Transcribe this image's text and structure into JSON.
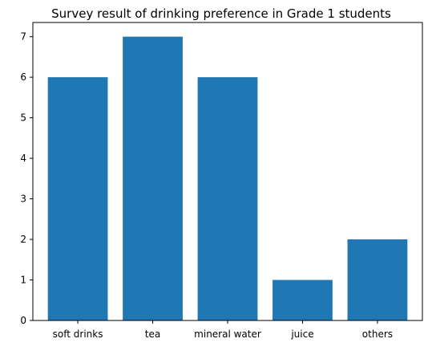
{
  "chart_data": {
    "type": "bar",
    "title": "Survey result of drinking preference in Grade 1 students",
    "categories": [
      "soft drinks",
      "tea",
      "mineral water",
      "juice",
      "others"
    ],
    "values": [
      6,
      7,
      6,
      1,
      2
    ],
    "xlabel": "",
    "ylabel": "",
    "ylim": [
      0,
      7.35
    ],
    "yticks": [
      0,
      1,
      2,
      3,
      4,
      5,
      6,
      7
    ],
    "grid": false,
    "legend": "none",
    "bar_color": "#1f77b4"
  }
}
